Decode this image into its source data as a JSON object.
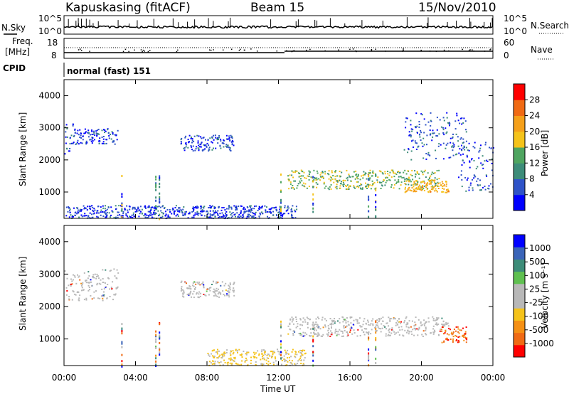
{
  "header": {
    "station": "Kapuskasing (fitACF)",
    "beam": "Beam 15",
    "date": "15/Nov/2010"
  },
  "strip": {
    "nsky_label": "N.Sky",
    "nsearch_label": "N.Search",
    "noise_ticks": [
      "10^5",
      "10^0"
    ],
    "freq_label_1": "Freq.",
    "freq_label_2": "[MHz]",
    "freq_ticks": [
      "18",
      "8"
    ],
    "nave_label": "Nave",
    "nave_ticks": [
      "60",
      "0"
    ],
    "cpid_label": "CPID",
    "cpid_value": "normal (fast) 151"
  },
  "colors": {
    "power_scale": [
      "#0000ff",
      "#2f53c8",
      "#3d8c79",
      "#4fa560",
      "#f5c31a",
      "#f5a01a",
      "#f06a14",
      "#ff0000"
    ],
    "velocity_scale": [
      "#0000ff",
      "#3a64b8",
      "#3d8c79",
      "#5fc050",
      "#b8b8b8",
      "#b8b8b8",
      "#f5c31a",
      "#f59014",
      "#f06a14",
      "#ff0000"
    ]
  },
  "chart_data": [
    {
      "type": "heatmap",
      "name": "power",
      "ylabel": "Slant Range [km]",
      "yticks": [
        "4000",
        "3000",
        "2000",
        "1000"
      ],
      "ylim": [
        180,
        4500
      ],
      "xlim": [
        0,
        24
      ],
      "colorbar_label": "Power [dB]",
      "colorbar_ticks": [
        "28",
        "24",
        "20",
        "16",
        "12",
        "8",
        "4"
      ],
      "clim": [
        0,
        32
      ],
      "regions": [
        {
          "t": [
            0.0,
            0.5
          ],
          "r": [
            2200,
            3200
          ],
          "level": 0.15
        },
        {
          "t": [
            0.5,
            3.0
          ],
          "r": [
            2500,
            3000
          ],
          "level": 0.12
        },
        {
          "t": [
            6.5,
            9.5
          ],
          "r": [
            2300,
            2800
          ],
          "level": 0.12
        },
        {
          "t": [
            12.5,
            21.0
          ],
          "r": [
            1100,
            1700
          ],
          "level": 0.45
        },
        {
          "t": [
            19.0,
            21.5
          ],
          "r": [
            1000,
            1400
          ],
          "level": 0.65
        },
        {
          "t": [
            19.0,
            22.5
          ],
          "r": [
            2000,
            3500
          ],
          "level": 0.15
        },
        {
          "t": [
            22.0,
            24.0
          ],
          "r": [
            1000,
            2600
          ],
          "level": 0.12
        },
        {
          "t": [
            0.0,
            13.0
          ],
          "r": [
            200,
            600
          ],
          "level": 0.1
        }
      ]
    },
    {
      "type": "heatmap",
      "name": "velocity",
      "ylabel": "Slant Range [km]",
      "yticks": [
        "4000",
        "3000",
        "2000",
        "1000"
      ],
      "ylim": [
        180,
        4500
      ],
      "xlim": [
        0,
        24
      ],
      "colorbar_label": "Velocity [m s⁻¹]",
      "colorbar_ticks": [
        "1000",
        "500",
        "100",
        "25",
        "-25",
        "-100",
        "-500",
        "-1000"
      ],
      "x_ticks": [
        "00:00",
        "04:00",
        "08:00",
        "12:00",
        "16:00",
        "20:00",
        "00:00"
      ],
      "xlabel": "Time UT",
      "regions": [
        {
          "t": [
            0.0,
            3.0
          ],
          "r": [
            2200,
            3200
          ],
          "level": "near-zero"
        },
        {
          "t": [
            6.5,
            9.5
          ],
          "r": [
            2300,
            2800
          ],
          "level": "near-zero"
        },
        {
          "t": [
            12.5,
            21.5
          ],
          "r": [
            1100,
            1700
          ],
          "level": "near-zero"
        },
        {
          "t": [
            8.0,
            13.5
          ],
          "r": [
            200,
            700
          ],
          "level": "-100"
        },
        {
          "t": [
            21.0,
            22.5
          ],
          "r": [
            900,
            1400
          ],
          "level": "-500"
        }
      ]
    }
  ]
}
